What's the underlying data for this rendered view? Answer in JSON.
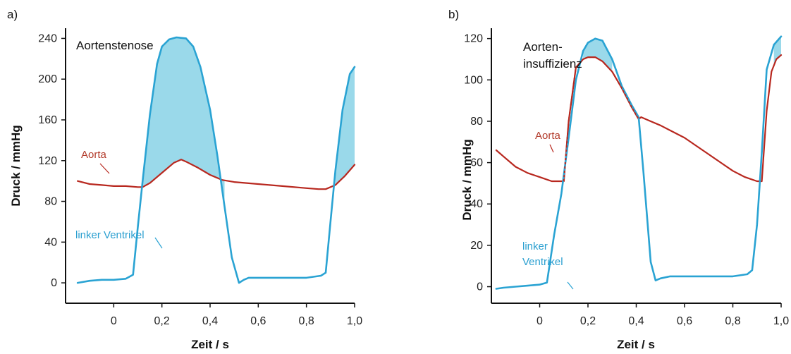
{
  "colors": {
    "aorta": "#b8281f",
    "ventricle": "#2aa3d3",
    "fill": "#9ad9ea",
    "axis": "#111111"
  },
  "chart_data": [
    {
      "type": "line",
      "panel_label": "a)",
      "title": "Aortenstenose",
      "xlabel": "Zeit / s",
      "ylabel": "Druck / mmHg",
      "xlim": [
        -0.2,
        1.0
      ],
      "ylim": [
        -20,
        250
      ],
      "x_ticks": [
        0,
        0.2,
        0.4,
        0.6,
        0.8,
        1.0
      ],
      "x_tick_labels": [
        "0",
        "0,2",
        "0,4",
        "0,6",
        "0,8",
        "1,0"
      ],
      "y_ticks": [
        0,
        40,
        80,
        120,
        160,
        200,
        240
      ],
      "y_tick_labels": [
        "0",
        "40",
        "80",
        "120",
        "160",
        "200",
        "240"
      ],
      "annotations": {
        "aorta": "Aorta",
        "ventricle": "linker Ventrikel"
      },
      "series": [
        {
          "name": "Aorta",
          "color_key": "aorta",
          "x": [
            -0.15,
            -0.1,
            -0.05,
            0.0,
            0.05,
            0.1,
            0.12,
            0.15,
            0.2,
            0.25,
            0.28,
            0.3,
            0.35,
            0.4,
            0.45,
            0.5,
            0.6,
            0.7,
            0.8,
            0.85,
            0.88,
            0.92,
            0.96,
            1.0
          ],
          "y": [
            100,
            97,
            96,
            95,
            95,
            94,
            94,
            98,
            108,
            118,
            121,
            119,
            113,
            106,
            101,
            99,
            97,
            95,
            93,
            92,
            92,
            96,
            105,
            116
          ]
        },
        {
          "name": "linker Ventrikel",
          "color_key": "ventricle",
          "x": [
            -0.15,
            -0.1,
            -0.05,
            0.0,
            0.05,
            0.08,
            0.1,
            0.12,
            0.15,
            0.18,
            0.2,
            0.23,
            0.26,
            0.3,
            0.33,
            0.36,
            0.4,
            0.43,
            0.46,
            0.49,
            0.52,
            0.54,
            0.56,
            0.6,
            0.7,
            0.8,
            0.86,
            0.88,
            0.9,
            0.92,
            0.95,
            0.98,
            1.0
          ],
          "y": [
            0,
            2,
            3,
            3,
            4,
            8,
            55,
            100,
            165,
            215,
            232,
            239,
            241,
            240,
            232,
            212,
            170,
            125,
            75,
            25,
            0,
            3,
            5,
            5,
            5,
            5,
            7,
            10,
            60,
            110,
            170,
            205,
            212
          ]
        }
      ],
      "shaded_regions": [
        {
          "x_from": 0.12,
          "x_to": 0.46
        },
        {
          "x_from": 0.92,
          "x_to": 1.0
        }
      ]
    },
    {
      "type": "line",
      "panel_label": "b)",
      "title": "Aorten-\ninsuffizienz",
      "xlabel": "Zeit / s",
      "ylabel": "Druck / mmHg",
      "xlim": [
        -0.2,
        1.0
      ],
      "ylim": [
        -8,
        125
      ],
      "x_ticks": [
        0,
        0.2,
        0.4,
        0.6,
        0.8,
        1.0
      ],
      "x_tick_labels": [
        "0",
        "0,2",
        "0,4",
        "0,6",
        "0,8",
        "1,0"
      ],
      "y_ticks": [
        0,
        20,
        40,
        60,
        80,
        100,
        120
      ],
      "y_tick_labels": [
        "0",
        "20",
        "40",
        "60",
        "80",
        "100",
        "120"
      ],
      "annotations": {
        "aorta": "Aorta",
        "ventricle": "linker\nVentrikel"
      },
      "series": [
        {
          "name": "Aorta",
          "color_key": "aorta",
          "x": [
            -0.18,
            -0.15,
            -0.1,
            -0.05,
            0.0,
            0.05,
            0.09,
            0.1,
            0.12,
            0.15,
            0.18,
            0.2,
            0.23,
            0.26,
            0.3,
            0.34,
            0.38,
            0.41,
            0.42,
            0.46,
            0.5,
            0.55,
            0.6,
            0.65,
            0.7,
            0.75,
            0.8,
            0.85,
            0.9,
            0.92,
            0.94,
            0.96,
            0.98,
            1.0
          ],
          "y": [
            66,
            63,
            58,
            55,
            53,
            51,
            51,
            51,
            80,
            106,
            110,
            111,
            111,
            109,
            104,
            96,
            87,
            81,
            82,
            80,
            78,
            75,
            72,
            68,
            64,
            60,
            56,
            53,
            51,
            51,
            85,
            104,
            110,
            112
          ]
        },
        {
          "name": "linker Ventrikel",
          "color_key": "ventricle",
          "x": [
            -0.18,
            -0.15,
            -0.1,
            -0.05,
            0.0,
            0.03,
            0.06,
            0.09,
            0.12,
            0.15,
            0.18,
            0.2,
            0.23,
            0.26,
            0.3,
            0.34,
            0.38,
            0.41,
            0.43,
            0.46,
            0.48,
            0.5,
            0.54,
            0.6,
            0.7,
            0.8,
            0.86,
            0.88,
            0.9,
            0.92,
            0.94,
            0.97,
            1.0
          ],
          "y": [
            -1,
            -0.5,
            0,
            0.5,
            1,
            2,
            25,
            45,
            72,
            100,
            114,
            118,
            120,
            119,
            110,
            97,
            88,
            82,
            55,
            12,
            3,
            4,
            5,
            5,
            5,
            5,
            6,
            8,
            30,
            65,
            105,
            117,
            121
          ]
        }
      ],
      "shaded_regions": [
        {
          "x_from": 0.18,
          "x_to": 0.3
        },
        {
          "x_from": 0.97,
          "x_to": 1.0
        }
      ]
    }
  ]
}
